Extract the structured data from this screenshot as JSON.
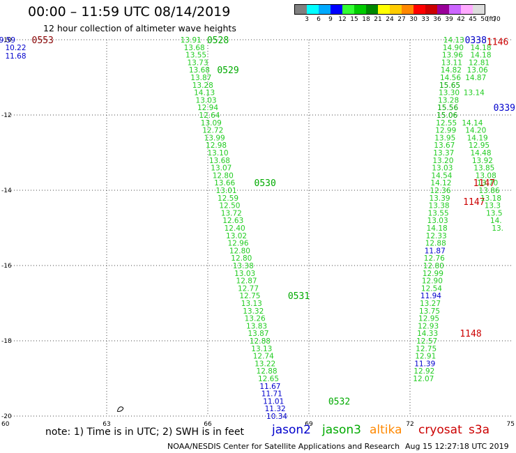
{
  "header": {
    "title": "00:00 – 11:59 UTC 08/14/2019",
    "subtitle": "12 hour collection of altimeter wave heights"
  },
  "legend": {
    "colors": [
      "#808080",
      "#00ffff",
      "#00aaff",
      "#0000ff",
      "#33ff33",
      "#00cc00",
      "#008800",
      "#ffff00",
      "#ffcc00",
      "#ff8800",
      "#ff0000",
      "#cc0000",
      "#990099",
      "#cc66ff",
      "#ffaaff",
      "#dddddd"
    ],
    "ticks": [
      "3",
      "6",
      "9",
      "12",
      "15",
      "18",
      "21",
      "24",
      "27",
      "30",
      "33",
      "36",
      "39",
      "42",
      "45",
      "50",
      "70"
    ],
    "unit": "(ft)"
  },
  "map": {
    "lon_ticks": [
      "60",
      "63",
      "66",
      "69",
      "72",
      "75"
    ],
    "lat_ticks": [
      "-10",
      "-12",
      "-14",
      "-16",
      "-18",
      "-20"
    ],
    "lon_range": [
      60,
      75
    ],
    "lat_range": [
      -20,
      -10
    ],
    "colors": {
      "jason2": "#0000cc",
      "jason3": "#00aa00",
      "altika": "#ff8800",
      "cryosat": "#cc0000",
      "s3a": "#cc0000",
      "low_swh": "#0000cc",
      "swh": "#22cc22",
      "old_time": "#880000"
    }
  },
  "chart_data": {
    "type": "map",
    "tracks": [
      {
        "name": "track-west",
        "swh": [
          {
            "lon": 60.05,
            "lat": -10.0,
            "v": "9.59",
            "c": "low_swh"
          },
          {
            "lon": 60.3,
            "lat": -10.2,
            "v": "10.22",
            "c": "low_swh"
          },
          {
            "lon": 60.3,
            "lat": -10.43,
            "v": "11.68",
            "c": "low_swh"
          }
        ],
        "times": [
          {
            "lon": 61.1,
            "lat": -10.0,
            "v": "0553",
            "c": "old_time"
          }
        ]
      },
      {
        "name": "track-central",
        "swh": [
          {
            "lon": 65.5,
            "lat": -10.0,
            "v": "13.91",
            "c": "swh"
          },
          {
            "lon": 65.6,
            "lat": -10.2,
            "v": "13.68",
            "c": "swh"
          },
          {
            "lon": 65.65,
            "lat": -10.4,
            "v": "13.55",
            "c": "swh"
          },
          {
            "lon": 65.7,
            "lat": -10.6,
            "v": "13.73",
            "c": "swh"
          },
          {
            "lon": 65.75,
            "lat": -10.8,
            "v": "13.68",
            "c": "swh"
          },
          {
            "lon": 65.8,
            "lat": -11.0,
            "v": "13.87",
            "c": "swh"
          },
          {
            "lon": 65.85,
            "lat": -11.2,
            "v": "13.28",
            "c": "swh"
          },
          {
            "lon": 65.9,
            "lat": -11.4,
            "v": "14.13",
            "c": "swh"
          },
          {
            "lon": 65.95,
            "lat": -11.6,
            "v": "13.03",
            "c": "swh"
          },
          {
            "lon": 66.0,
            "lat": -11.8,
            "v": "12.94",
            "c": "swh"
          },
          {
            "lon": 66.05,
            "lat": -12.0,
            "v": "12.64",
            "c": "swh"
          },
          {
            "lon": 66.1,
            "lat": -12.2,
            "v": "13.09",
            "c": "swh"
          },
          {
            "lon": 66.15,
            "lat": -12.4,
            "v": "12.72",
            "c": "swh"
          },
          {
            "lon": 66.2,
            "lat": -12.6,
            "v": "13.99",
            "c": "swh"
          },
          {
            "lon": 66.25,
            "lat": -12.8,
            "v": "12.98",
            "c": "swh"
          },
          {
            "lon": 66.3,
            "lat": -13.0,
            "v": "13.10",
            "c": "swh"
          },
          {
            "lon": 66.35,
            "lat": -13.2,
            "v": "13.68",
            "c": "swh"
          },
          {
            "lon": 66.4,
            "lat": -13.4,
            "v": "13.07",
            "c": "swh"
          },
          {
            "lon": 66.45,
            "lat": -13.6,
            "v": "12.80",
            "c": "swh"
          },
          {
            "lon": 66.5,
            "lat": -13.8,
            "v": "13.66",
            "c": "swh"
          },
          {
            "lon": 66.55,
            "lat": -14.0,
            "v": "13.01",
            "c": "swh"
          },
          {
            "lon": 66.6,
            "lat": -14.2,
            "v": "12.59",
            "c": "swh"
          },
          {
            "lon": 66.65,
            "lat": -14.4,
            "v": "12.50",
            "c": "swh"
          },
          {
            "lon": 66.7,
            "lat": -14.6,
            "v": "13.72",
            "c": "swh"
          },
          {
            "lon": 66.75,
            "lat": -14.8,
            "v": "12.63",
            "c": "swh"
          },
          {
            "lon": 66.8,
            "lat": -15.0,
            "v": "12.40",
            "c": "swh"
          },
          {
            "lon": 66.85,
            "lat": -15.2,
            "v": "13.02",
            "c": "swh"
          },
          {
            "lon": 66.9,
            "lat": -15.4,
            "v": "12.96",
            "c": "swh"
          },
          {
            "lon": 66.95,
            "lat": -15.6,
            "v": "12.80",
            "c": "swh"
          },
          {
            "lon": 67.0,
            "lat": -15.8,
            "v": "12.80",
            "c": "swh"
          },
          {
            "lon": 67.05,
            "lat": -16.0,
            "v": "13.38",
            "c": "swh"
          },
          {
            "lon": 67.1,
            "lat": -16.2,
            "v": "13.03",
            "c": "swh"
          },
          {
            "lon": 67.15,
            "lat": -16.4,
            "v": "12.87",
            "c": "swh"
          },
          {
            "lon": 67.2,
            "lat": -16.6,
            "v": "12.77",
            "c": "swh"
          },
          {
            "lon": 67.25,
            "lat": -16.8,
            "v": "12.75",
            "c": "swh"
          },
          {
            "lon": 67.3,
            "lat": -17.0,
            "v": "13.13",
            "c": "swh"
          },
          {
            "lon": 67.35,
            "lat": -17.2,
            "v": "13.32",
            "c": "swh"
          },
          {
            "lon": 67.4,
            "lat": -17.4,
            "v": "13.26",
            "c": "swh"
          },
          {
            "lon": 67.45,
            "lat": -17.6,
            "v": "13.83",
            "c": "swh"
          },
          {
            "lon": 67.5,
            "lat": -17.8,
            "v": "13.87",
            "c": "swh"
          },
          {
            "lon": 67.55,
            "lat": -18.0,
            "v": "12.88",
            "c": "swh"
          },
          {
            "lon": 67.6,
            "lat": -18.2,
            "v": "13.13",
            "c": "swh"
          },
          {
            "lon": 67.65,
            "lat": -18.4,
            "v": "12.74",
            "c": "swh"
          },
          {
            "lon": 67.7,
            "lat": -18.6,
            "v": "13.22",
            "c": "swh"
          },
          {
            "lon": 67.75,
            "lat": -18.8,
            "v": "12.88",
            "c": "swh"
          },
          {
            "lon": 67.8,
            "lat": -19.0,
            "v": "12.65",
            "c": "swh"
          },
          {
            "lon": 67.85,
            "lat": -19.2,
            "v": "11.67",
            "c": "low_swh"
          },
          {
            "lon": 67.9,
            "lat": -19.4,
            "v": "11.71",
            "c": "low_swh"
          },
          {
            "lon": 67.95,
            "lat": -19.6,
            "v": "11.01",
            "c": "low_swh"
          },
          {
            "lon": 68.0,
            "lat": -19.8,
            "v": "11.32",
            "c": "low_swh"
          },
          {
            "lon": 68.05,
            "lat": -20.0,
            "v": "10.34",
            "c": "low_swh"
          }
        ],
        "times": [
          {
            "lon": 66.3,
            "lat": -10.0,
            "v": "0528",
            "c": "jason3"
          },
          {
            "lon": 66.6,
            "lat": -10.8,
            "v": "0529",
            "c": "jason3"
          },
          {
            "lon": 67.7,
            "lat": -13.8,
            "v": "0530",
            "c": "jason3"
          },
          {
            "lon": 68.7,
            "lat": -16.8,
            "v": "0531",
            "c": "jason3"
          },
          {
            "lon": 69.9,
            "lat": -19.6,
            "v": "0532",
            "c": "jason3"
          }
        ]
      },
      {
        "name": "track-east",
        "swh": [
          {
            "lon": 73.3,
            "lat": -10.0,
            "v": "14.13",
            "c": "swh"
          },
          {
            "lon": 73.28,
            "lat": -10.2,
            "v": "14.90",
            "c": "swh"
          },
          {
            "lon": 73.26,
            "lat": -10.4,
            "v": "13.96",
            "c": "swh"
          },
          {
            "lon": 73.24,
            "lat": -10.6,
            "v": "13.11",
            "c": "swh"
          },
          {
            "lon": 73.22,
            "lat": -10.8,
            "v": "14.82",
            "c": "swh"
          },
          {
            "lon": 73.2,
            "lat": -11.0,
            "v": "14.56",
            "c": "swh"
          },
          {
            "lon": 73.18,
            "lat": -11.2,
            "v": "15.65",
            "c": "jason3"
          },
          {
            "lon": 73.16,
            "lat": -11.4,
            "v": "13.30",
            "c": "swh"
          },
          {
            "lon": 73.14,
            "lat": -11.6,
            "v": "13.28",
            "c": "swh"
          },
          {
            "lon": 73.12,
            "lat": -11.8,
            "v": "15.56",
            "c": "jason3"
          },
          {
            "lon": 73.1,
            "lat": -12.0,
            "v": "15.06",
            "c": "jason3"
          },
          {
            "lon": 73.08,
            "lat": -12.2,
            "v": "12.55",
            "c": "swh"
          },
          {
            "lon": 73.06,
            "lat": -12.4,
            "v": "12.99",
            "c": "swh"
          },
          {
            "lon": 73.04,
            "lat": -12.6,
            "v": "13.95",
            "c": "swh"
          },
          {
            "lon": 73.02,
            "lat": -12.8,
            "v": "13.67",
            "c": "swh"
          },
          {
            "lon": 73.0,
            "lat": -13.0,
            "v": "13.37",
            "c": "swh"
          },
          {
            "lon": 72.98,
            "lat": -13.2,
            "v": "13.20",
            "c": "swh"
          },
          {
            "lon": 72.96,
            "lat": -13.4,
            "v": "13.03",
            "c": "swh"
          },
          {
            "lon": 72.94,
            "lat": -13.6,
            "v": "14.54",
            "c": "swh"
          },
          {
            "lon": 72.92,
            "lat": -13.8,
            "v": "14.12",
            "c": "swh"
          },
          {
            "lon": 72.9,
            "lat": -14.0,
            "v": "12.36",
            "c": "swh"
          },
          {
            "lon": 72.88,
            "lat": -14.2,
            "v": "13.39",
            "c": "swh"
          },
          {
            "lon": 72.86,
            "lat": -14.4,
            "v": "13.38",
            "c": "swh"
          },
          {
            "lon": 72.84,
            "lat": -14.6,
            "v": "13.55",
            "c": "swh"
          },
          {
            "lon": 72.82,
            "lat": -14.8,
            "v": "13.03",
            "c": "swh"
          },
          {
            "lon": 72.8,
            "lat": -15.0,
            "v": "14.18",
            "c": "swh"
          },
          {
            "lon": 72.78,
            "lat": -15.2,
            "v": "12.33",
            "c": "swh"
          },
          {
            "lon": 72.76,
            "lat": -15.4,
            "v": "12.88",
            "c": "swh"
          },
          {
            "lon": 72.74,
            "lat": -15.6,
            "v": "11.87",
            "c": "low_swh"
          },
          {
            "lon": 72.72,
            "lat": -15.8,
            "v": "12.76",
            "c": "swh"
          },
          {
            "lon": 72.7,
            "lat": -16.0,
            "v": "12.80",
            "c": "swh"
          },
          {
            "lon": 72.68,
            "lat": -16.2,
            "v": "12.99",
            "c": "swh"
          },
          {
            "lon": 72.66,
            "lat": -16.4,
            "v": "12.90",
            "c": "swh"
          },
          {
            "lon": 72.64,
            "lat": -16.6,
            "v": "12.54",
            "c": "swh"
          },
          {
            "lon": 72.62,
            "lat": -16.8,
            "v": "11.94",
            "c": "low_swh"
          },
          {
            "lon": 72.6,
            "lat": -17.0,
            "v": "13.27",
            "c": "swh"
          },
          {
            "lon": 72.58,
            "lat": -17.2,
            "v": "13.75",
            "c": "swh"
          },
          {
            "lon": 72.56,
            "lat": -17.4,
            "v": "12.95",
            "c": "swh"
          },
          {
            "lon": 72.54,
            "lat": -17.6,
            "v": "12.93",
            "c": "swh"
          },
          {
            "lon": 72.52,
            "lat": -17.8,
            "v": "14.33",
            "c": "swh"
          },
          {
            "lon": 72.5,
            "lat": -18.0,
            "v": "12.57",
            "c": "swh"
          },
          {
            "lon": 72.48,
            "lat": -18.2,
            "v": "12.75",
            "c": "swh"
          },
          {
            "lon": 72.46,
            "lat": -18.4,
            "v": "12.91",
            "c": "swh"
          },
          {
            "lon": 72.44,
            "lat": -18.6,
            "v": "11.39",
            "c": "low_swh"
          },
          {
            "lon": 72.42,
            "lat": -18.8,
            "v": "12.92",
            "c": "swh"
          },
          {
            "lon": 72.4,
            "lat": -19.0,
            "v": "12.07",
            "c": "swh"
          }
        ],
        "times": [
          {
            "lon": 73.95,
            "lat": -10.0,
            "v": "0338",
            "c": "jason2"
          },
          {
            "lon": 74.8,
            "lat": -11.8,
            "v": "0339",
            "c": "jason2"
          },
          {
            "lon": 74.2,
            "lat": -13.8,
            "v": "1147",
            "c": "cryosat"
          },
          {
            "lon": 73.9,
            "lat": -14.3,
            "v": "1147",
            "c": "cryosat"
          },
          {
            "lon": 73.8,
            "lat": -17.8,
            "v": "1148",
            "c": "cryosat"
          }
        ]
      },
      {
        "name": "track-far-east",
        "swh": [
          {
            "lon": 74.1,
            "lat": -10.2,
            "v": "14.18",
            "c": "swh"
          },
          {
            "lon": 74.1,
            "lat": -10.4,
            "v": "14.18",
            "c": "swh"
          },
          {
            "lon": 74.05,
            "lat": -10.6,
            "v": "12.81",
            "c": "swh"
          },
          {
            "lon": 74.0,
            "lat": -10.8,
            "v": "13.06",
            "c": "swh"
          },
          {
            "lon": 73.95,
            "lat": -11.0,
            "v": "14.87",
            "c": "swh"
          },
          {
            "lon": 73.9,
            "lat": -11.4,
            "v": "13.14",
            "c": "swh"
          },
          {
            "lon": 73.85,
            "lat": -12.2,
            "v": "14.14",
            "c": "swh"
          },
          {
            "lon": 73.95,
            "lat": -12.4,
            "v": "14.20",
            "c": "swh"
          },
          {
            "lon": 74.0,
            "lat": -12.6,
            "v": "14.19",
            "c": "swh"
          },
          {
            "lon": 74.05,
            "lat": -12.8,
            "v": "12.95",
            "c": "swh"
          },
          {
            "lon": 74.1,
            "lat": -13.0,
            "v": "14.48",
            "c": "swh"
          },
          {
            "lon": 74.15,
            "lat": -13.2,
            "v": "13.92",
            "c": "swh"
          },
          {
            "lon": 74.2,
            "lat": -13.4,
            "v": "13.85",
            "c": "swh"
          },
          {
            "lon": 74.25,
            "lat": -13.6,
            "v": "13.08",
            "c": "swh"
          },
          {
            "lon": 74.3,
            "lat": -13.8,
            "v": "13.70",
            "c": "swh"
          },
          {
            "lon": 74.35,
            "lat": -14.0,
            "v": "13.86",
            "c": "swh"
          },
          {
            "lon": 74.4,
            "lat": -14.2,
            "v": "13.18",
            "c": "swh"
          },
          {
            "lon": 74.45,
            "lat": -14.4,
            "v": "13.3",
            "c": "swh"
          },
          {
            "lon": 74.5,
            "lat": -14.6,
            "v": "13.5",
            "c": "swh"
          },
          {
            "lon": 74.55,
            "lat": -14.8,
            "v": "14.",
            "c": "swh"
          },
          {
            "lon": 74.6,
            "lat": -15.0,
            "v": "13.",
            "c": "swh"
          }
        ],
        "times": [
          {
            "lon": 74.6,
            "lat": -10.05,
            "v": "1146",
            "c": "cryosat"
          }
        ]
      }
    ],
    "land": [
      {
        "lon": 63.4,
        "lat": -19.8
      }
    ]
  },
  "footer": {
    "note": "note:  1) Time is in UTC;  2) SWH is in feet",
    "satellites": [
      {
        "name": "jason2",
        "color_key": "jason2"
      },
      {
        "name": "jason3",
        "color_key": "jason3"
      },
      {
        "name": "altika",
        "color_key": "altika"
      },
      {
        "name": "cryosat",
        "color_key": "cryosat"
      },
      {
        "name": "s3a",
        "color_key": "s3a"
      }
    ],
    "credit": "NOAA/NESDIS Center for Satellite Applications and Research",
    "timestamp": "Aug 15 12:27:18 UTC 2019"
  }
}
